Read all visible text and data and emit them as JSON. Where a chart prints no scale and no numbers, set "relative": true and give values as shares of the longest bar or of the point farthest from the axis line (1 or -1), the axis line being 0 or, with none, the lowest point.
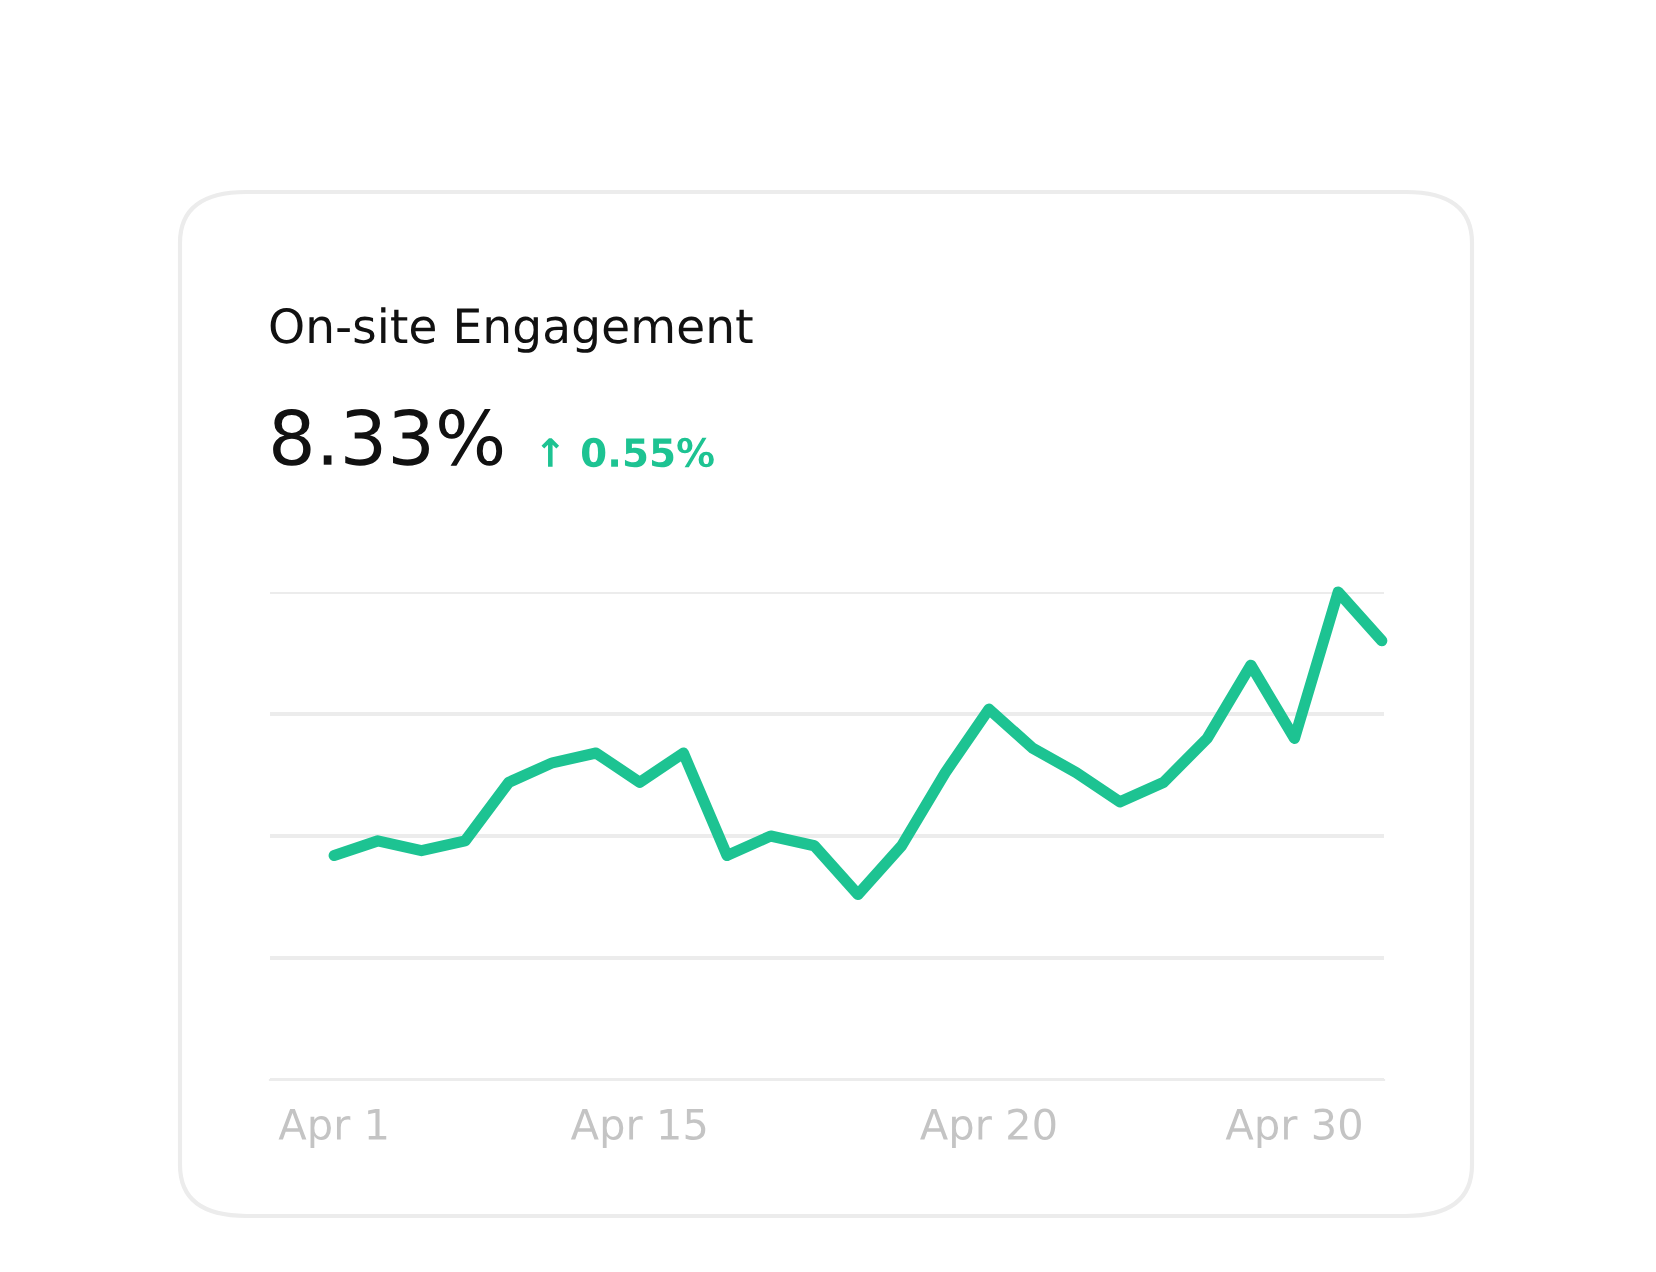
{
  "chart_data": {
    "type": "line",
    "title": "On-site Engagement",
    "subtitle": "8.33%",
    "annotations": [
      "↑ 0.55%"
    ],
    "categories": [
      "Apr 1",
      null,
      null,
      null,
      null,
      null,
      null,
      "Apr 15",
      null,
      null,
      null,
      null,
      null,
      null,
      null,
      "Apr 20",
      null,
      null,
      null,
      null,
      null,
      null,
      "Apr 30",
      null,
      null
    ],
    "relative": true,
    "grid": "y",
    "color": "#1dc392",
    "line_style": "solid",
    "marker": "none",
    "values": [
      0.46,
      0.49,
      0.47,
      0.49,
      0.61,
      0.65,
      0.67,
      0.61,
      0.67,
      0.46,
      0.5,
      0.48,
      0.38,
      0.48,
      0.63,
      0.76,
      0.68,
      0.63,
      0.57,
      0.61,
      0.7,
      0.85,
      0.7,
      1.0,
      0.9
    ]
  }
}
